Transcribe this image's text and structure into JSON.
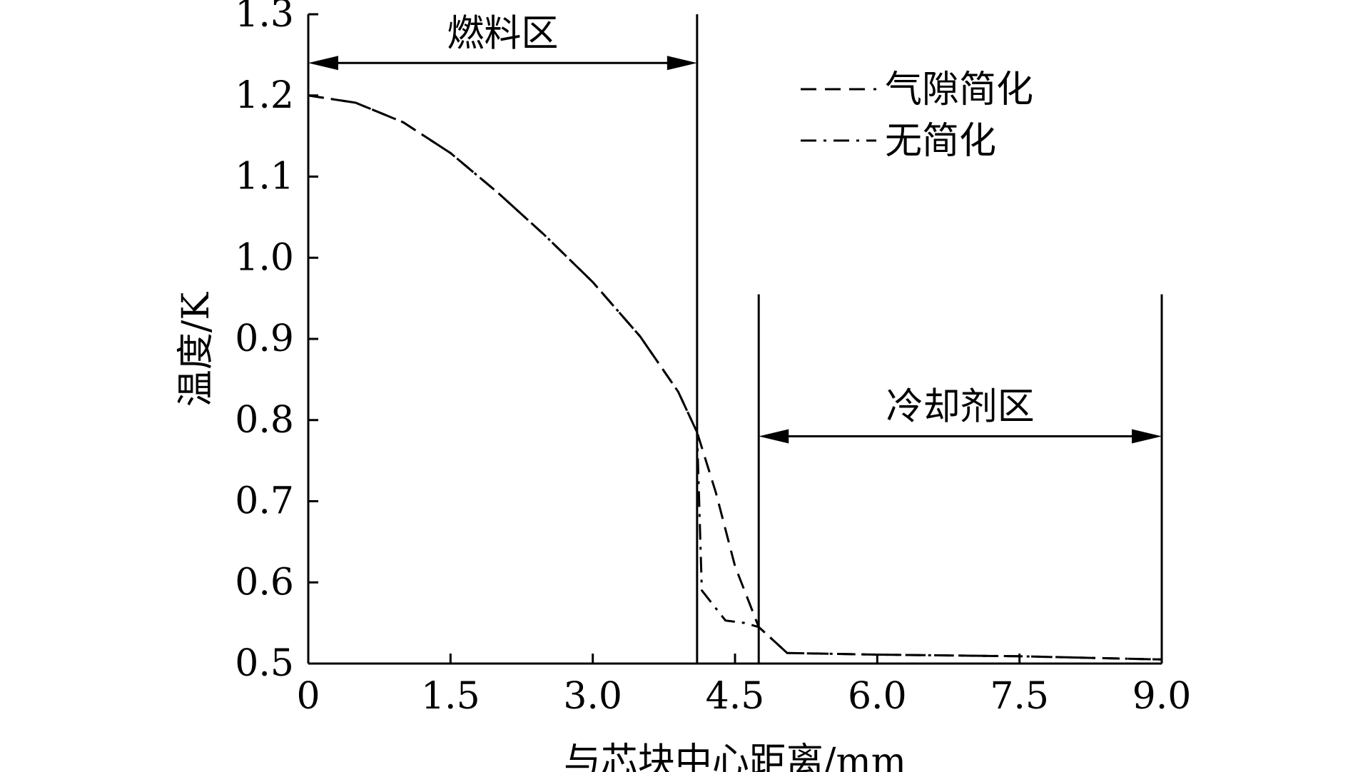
{
  "chart_data": {
    "type": "line",
    "xlabel": "与芯块中心距离/mm",
    "ylabel": "温度/K",
    "xlim": [
      0,
      9.0
    ],
    "ylim": [
      0.5,
      1.3
    ],
    "x_ticks": [
      {
        "value": 0,
        "label": "0"
      },
      {
        "value": 1.5,
        "label": "1.5"
      },
      {
        "value": 3.0,
        "label": "3.0"
      },
      {
        "value": 4.5,
        "label": "4.5"
      },
      {
        "value": 6.0,
        "label": "6.0"
      },
      {
        "value": 7.5,
        "label": "7.5"
      },
      {
        "value": 9.0,
        "label": "9.0"
      }
    ],
    "y_ticks": [
      {
        "value": 0.5,
        "label": "0.5"
      },
      {
        "value": 0.6,
        "label": "0.6"
      },
      {
        "value": 0.7,
        "label": "0.7"
      },
      {
        "value": 0.8,
        "label": "0.8"
      },
      {
        "value": 0.9,
        "label": "0.9"
      },
      {
        "value": 1.0,
        "label": "1.0"
      },
      {
        "value": 1.1,
        "label": "1.1"
      },
      {
        "value": 1.2,
        "label": "1.2"
      },
      {
        "value": 1.3,
        "label": "1.3"
      }
    ],
    "grid": false,
    "legend": "top-right",
    "zones": [
      {
        "label": "燃料区",
        "x_start": 0,
        "x_end": 4.1,
        "arrow_y": 1.24,
        "line_y_range": [
          0.5,
          1.3
        ]
      },
      {
        "label": "冷却剂区",
        "x_start": 4.75,
        "x_end": 9.0,
        "arrow_y": 0.78,
        "line_y_range": [
          0.5,
          0.955
        ]
      }
    ],
    "series": [
      {
        "name": "气隙简化",
        "style": "dashed",
        "x": [
          0,
          0.5,
          1.0,
          1.5,
          2.0,
          2.5,
          3.0,
          3.5,
          3.9,
          4.1,
          4.3,
          4.5,
          4.75,
          5.05,
          6.0,
          7.5,
          9.0
        ],
        "y": [
          1.2,
          1.191,
          1.167,
          1.129,
          1.08,
          1.027,
          0.97,
          0.903,
          0.835,
          0.785,
          0.71,
          0.62,
          0.545,
          0.513,
          0.511,
          0.509,
          0.505
        ]
      },
      {
        "name": "无简化",
        "style": "dashdot",
        "x": [
          0,
          0.5,
          1.0,
          1.5,
          2.0,
          2.5,
          3.0,
          3.5,
          3.9,
          4.1,
          4.15,
          4.4,
          4.6,
          4.75,
          5.05,
          6.0,
          7.5,
          9.0
        ],
        "y": [
          1.2,
          1.191,
          1.167,
          1.129,
          1.08,
          1.027,
          0.97,
          0.903,
          0.835,
          0.785,
          0.59,
          0.553,
          0.55,
          0.545,
          0.513,
          0.511,
          0.509,
          0.505
        ]
      }
    ]
  }
}
